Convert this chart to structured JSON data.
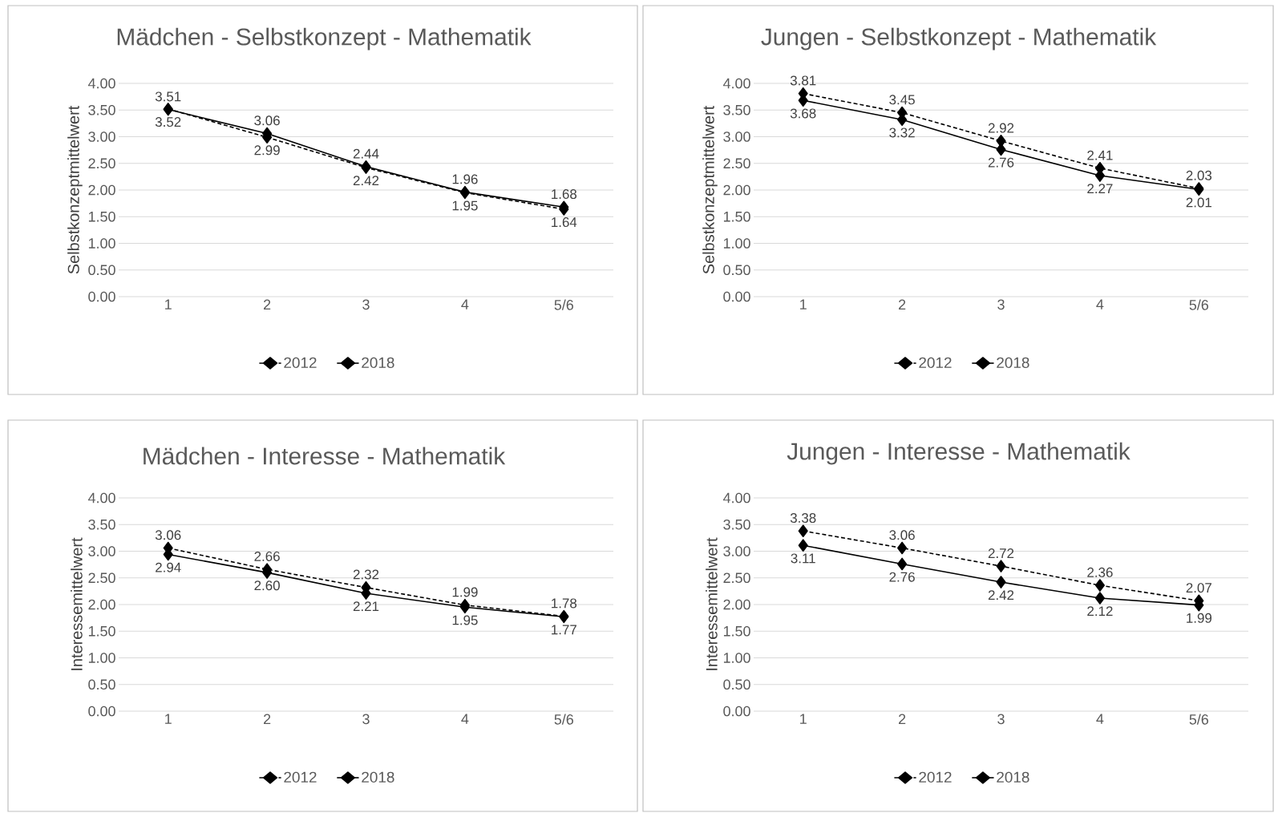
{
  "chart_data": [
    {
      "type": "line",
      "title": "Mädchen - Selbstkonzept - Mathematik",
      "ylabel": "Selbstkonzeptmittelwert",
      "categories": [
        "1",
        "2",
        "3",
        "4",
        "5/6"
      ],
      "ylim": [
        0,
        4
      ],
      "yticks": [
        {
          "value": 0,
          "label": "0.00"
        },
        {
          "value": 0.5,
          "label": "0.50"
        },
        {
          "value": 1,
          "label": "1.00"
        },
        {
          "value": 1.5,
          "label": "1.50"
        },
        {
          "value": 2,
          "label": "2.00"
        },
        {
          "value": 2.5,
          "label": "2.50"
        },
        {
          "value": 3,
          "label": "3.00"
        },
        {
          "value": 3.5,
          "label": "3.50"
        },
        {
          "value": 4,
          "label": "4.00"
        }
      ],
      "grid": "y",
      "legend": "bottom",
      "marker": "diamond",
      "series": [
        {
          "name": "2012",
          "color": "#000000",
          "line_style": "dashed",
          "values": [
            3.52,
            2.99,
            2.42,
            1.95,
            1.64
          ],
          "value_labels": [
            "3.52",
            "2.99",
            "2.42",
            "1.95",
            "1.64"
          ]
        },
        {
          "name": "2018",
          "color": "#000000",
          "line_style": "solid",
          "values": [
            3.51,
            3.06,
            2.44,
            1.96,
            1.68
          ],
          "value_labels": [
            "3.51",
            "3.06",
            "2.44",
            "1.96",
            "1.68"
          ]
        }
      ]
    },
    {
      "type": "line",
      "title": "Jungen - Selbstkonzept - Mathematik",
      "ylabel": "Selbstkonzeptmittelwert",
      "categories": [
        "1",
        "2",
        "3",
        "4",
        "5/6"
      ],
      "ylim": [
        0,
        4
      ],
      "yticks": [
        {
          "value": 0,
          "label": "0.00"
        },
        {
          "value": 0.5,
          "label": "0.50"
        },
        {
          "value": 1,
          "label": "1.00"
        },
        {
          "value": 1.5,
          "label": "1.50"
        },
        {
          "value": 2,
          "label": "2.00"
        },
        {
          "value": 2.5,
          "label": "2.50"
        },
        {
          "value": 3,
          "label": "3.00"
        },
        {
          "value": 3.5,
          "label": "3.50"
        },
        {
          "value": 4,
          "label": "4.00"
        }
      ],
      "grid": "y",
      "legend": "bottom",
      "marker": "diamond",
      "series": [
        {
          "name": "2012",
          "color": "#000000",
          "line_style": "dashed",
          "values": [
            3.81,
            3.45,
            2.92,
            2.41,
            2.03
          ],
          "value_labels": [
            "3.81",
            "3.45",
            "2.92",
            "2.41",
            "2.03"
          ]
        },
        {
          "name": "2018",
          "color": "#000000",
          "line_style": "solid",
          "values": [
            3.68,
            3.32,
            2.76,
            2.27,
            2.01
          ],
          "value_labels": [
            "3.68",
            "3.32",
            "2.76",
            "2.27",
            "2.01"
          ]
        }
      ]
    },
    {
      "type": "line",
      "title": "Mädchen - Interesse - Mathematik",
      "ylabel": "Interessemittelwert",
      "categories": [
        "1",
        "2",
        "3",
        "4",
        "5/6"
      ],
      "ylim": [
        0,
        4
      ],
      "yticks": [
        {
          "value": 0,
          "label": "0.00"
        },
        {
          "value": 0.5,
          "label": "0.50"
        },
        {
          "value": 1,
          "label": "1.00"
        },
        {
          "value": 1.5,
          "label": "1.50"
        },
        {
          "value": 2,
          "label": "2.00"
        },
        {
          "value": 2.5,
          "label": "2.50"
        },
        {
          "value": 3,
          "label": "3.00"
        },
        {
          "value": 3.5,
          "label": "3.50"
        },
        {
          "value": 4,
          "label": "4.00"
        }
      ],
      "grid": "y",
      "legend": "bottom",
      "marker": "diamond",
      "series": [
        {
          "name": "2012",
          "color": "#000000",
          "line_style": "dashed",
          "values": [
            3.06,
            2.66,
            2.32,
            1.99,
            1.78
          ],
          "value_labels": [
            "3.06",
            "2.66",
            "2.32",
            "1.99",
            "1.78"
          ]
        },
        {
          "name": "2018",
          "color": "#000000",
          "line_style": "solid",
          "values": [
            2.94,
            2.6,
            2.21,
            1.95,
            1.77
          ],
          "value_labels": [
            "2.94",
            "2.60",
            "2.21",
            "1.95",
            "1.77"
          ]
        }
      ]
    },
    {
      "type": "line",
      "title": "Jungen - Interesse - Mathematik",
      "ylabel": "Interessemittelwert",
      "categories": [
        "1",
        "2",
        "3",
        "4",
        "5/6"
      ],
      "ylim": [
        0,
        4
      ],
      "yticks": [
        {
          "value": 0,
          "label": "0.00"
        },
        {
          "value": 0.5,
          "label": "0.50"
        },
        {
          "value": 1,
          "label": "1.00"
        },
        {
          "value": 1.5,
          "label": "1.50"
        },
        {
          "value": 2,
          "label": "2.00"
        },
        {
          "value": 2.5,
          "label": "2.50"
        },
        {
          "value": 3,
          "label": "3.00"
        },
        {
          "value": 3.5,
          "label": "3.50"
        },
        {
          "value": 4,
          "label": "4.00"
        }
      ],
      "grid": "y",
      "legend": "bottom",
      "marker": "diamond",
      "series": [
        {
          "name": "2012",
          "color": "#000000",
          "line_style": "dashed",
          "values": [
            3.38,
            3.06,
            2.72,
            2.36,
            2.07
          ],
          "value_labels": [
            "3.38",
            "3.06",
            "2.72",
            "2.36",
            "2.07"
          ]
        },
        {
          "name": "2018",
          "color": "#000000",
          "line_style": "solid",
          "values": [
            3.11,
            2.76,
            2.42,
            2.12,
            1.99
          ],
          "value_labels": [
            "3.11",
            "2.76",
            "2.42",
            "2.12",
            "1.99"
          ]
        }
      ]
    }
  ]
}
